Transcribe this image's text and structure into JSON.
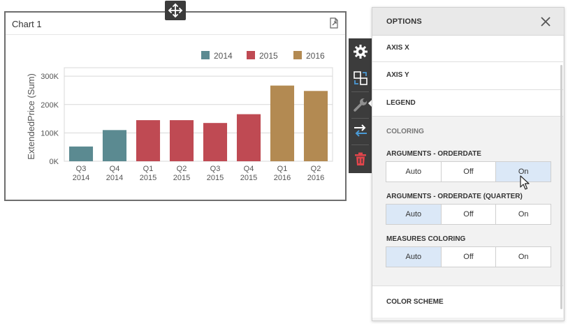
{
  "chart": {
    "title": "Chart 1"
  },
  "chart_data": {
    "type": "bar",
    "ylabel": "ExtendedPrice (Sum)",
    "xlabel": "",
    "ylim": [
      0,
      330000
    ],
    "yticks": [
      {
        "value": 0,
        "label": "0K"
      },
      {
        "value": 100000,
        "label": "100K"
      },
      {
        "value": 200000,
        "label": "200K"
      },
      {
        "value": 300000,
        "label": "300K"
      }
    ],
    "legend": [
      {
        "name": "2014",
        "color": "#5b8a91"
      },
      {
        "name": "2015",
        "color": "#bf4a53"
      },
      {
        "name": "2016",
        "color": "#b38a52"
      }
    ],
    "legend_position": "top-right",
    "grid": true,
    "categories": [
      {
        "quarter": "Q3",
        "year": "2014",
        "value": 52000,
        "series": "2014"
      },
      {
        "quarter": "Q4",
        "year": "2014",
        "value": 110000,
        "series": "2014"
      },
      {
        "quarter": "Q1",
        "year": "2015",
        "value": 145000,
        "series": "2015"
      },
      {
        "quarter": "Q2",
        "year": "2015",
        "value": 145000,
        "series": "2015"
      },
      {
        "quarter": "Q3",
        "year": "2015",
        "value": 135000,
        "series": "2015"
      },
      {
        "quarter": "Q4",
        "year": "2015",
        "value": 166000,
        "series": "2015"
      },
      {
        "quarter": "Q1",
        "year": "2016",
        "value": 267000,
        "series": "2016"
      },
      {
        "quarter": "Q2",
        "year": "2016",
        "value": 248000,
        "series": "2016"
      }
    ]
  },
  "toolbar": {
    "items": [
      "gear-icon",
      "convert-icon",
      "wrench-icon",
      "swap-icon",
      "trash-icon"
    ],
    "active": "wrench-icon"
  },
  "panel": {
    "title": "OPTIONS",
    "sections": {
      "axis_x": "AXIS X",
      "axis_y": "AXIS Y",
      "legend": "LEGEND",
      "coloring": "COLORING",
      "color_scheme": "COLOR SCHEME"
    },
    "groups": [
      {
        "label": "ARGUMENTS - ORDERDATE",
        "options": [
          "Auto",
          "Off",
          "On"
        ],
        "selected": "On"
      },
      {
        "label": "ARGUMENTS - ORDERDATE (QUARTER)",
        "options": [
          "Auto",
          "Off",
          "On"
        ],
        "selected": "Auto"
      },
      {
        "label": "MEASURES COLORING",
        "options": [
          "Auto",
          "Off",
          "On"
        ],
        "selected": "Auto"
      }
    ]
  },
  "colors": {
    "accent": "#dbe8f7",
    "toolbar_bg": "#3c3c3c",
    "trash": "#e0454b",
    "blue_icon": "#4a9ad6"
  }
}
